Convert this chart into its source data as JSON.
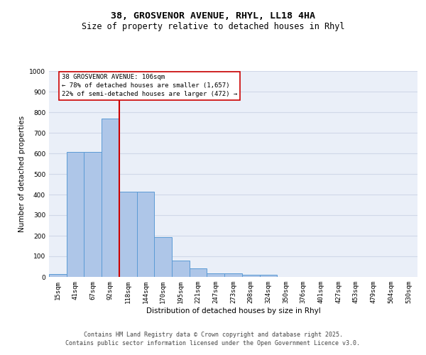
{
  "title_line1": "38, GROSVENOR AVENUE, RHYL, LL18 4HA",
  "title_line2": "Size of property relative to detached houses in Rhyl",
  "xlabel": "Distribution of detached houses by size in Rhyl",
  "ylabel": "Number of detached properties",
  "categories": [
    "15sqm",
    "41sqm",
    "67sqm",
    "92sqm",
    "118sqm",
    "144sqm",
    "170sqm",
    "195sqm",
    "221sqm",
    "247sqm",
    "273sqm",
    "298sqm",
    "324sqm",
    "350sqm",
    "376sqm",
    "401sqm",
    "427sqm",
    "453sqm",
    "479sqm",
    "504sqm",
    "530sqm"
  ],
  "values": [
    14,
    607,
    607,
    770,
    413,
    413,
    192,
    78,
    40,
    18,
    18,
    12,
    12,
    0,
    0,
    0,
    0,
    0,
    0,
    0,
    0
  ],
  "bar_color": "#aec6e8",
  "bar_edge_color": "#5b9bd5",
  "vline_color": "#cc0000",
  "annotation_line1": "38 GROSVENOR AVENUE: 106sqm",
  "annotation_line2": "← 78% of detached houses are smaller (1,657)",
  "annotation_line3": "22% of semi-detached houses are larger (472) →",
  "annotation_box_edgecolor": "#cc0000",
  "ylim_min": 0,
  "ylim_max": 1000,
  "yticks": [
    0,
    100,
    200,
    300,
    400,
    500,
    600,
    700,
    800,
    900,
    1000
  ],
  "grid_color": "#d0d8e8",
  "bg_color": "#eaeff8",
  "footer_text": "Contains HM Land Registry data © Crown copyright and database right 2025.\nContains public sector information licensed under the Open Government Licence v3.0.",
  "title_fontsize": 9.5,
  "subtitle_fontsize": 8.5,
  "axis_label_fontsize": 7.5,
  "tick_fontsize": 6.5,
  "annotation_fontsize": 6.5,
  "footer_fontsize": 6.0,
  "property_size_sqm": 106,
  "bin_width": 26
}
